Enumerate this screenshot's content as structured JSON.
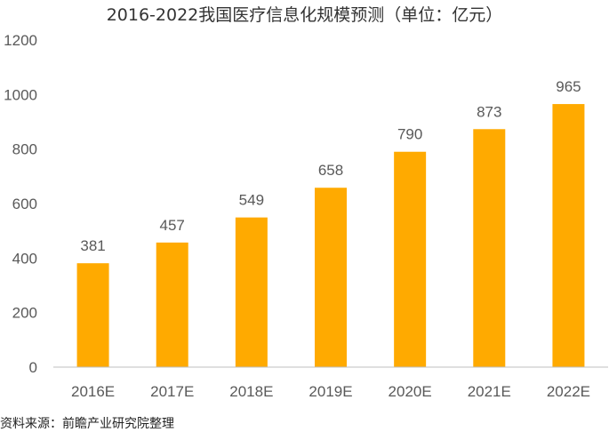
{
  "chart_data": {
    "type": "bar",
    "title": "2016-2022我国医疗信息化规模预测（单位：亿元）",
    "categories": [
      "2016E",
      "2017E",
      "2018E",
      "2019E",
      "2020E",
      "2021E",
      "2022E"
    ],
    "values": [
      381,
      457,
      549,
      658,
      790,
      873,
      965
    ],
    "ylim": [
      0,
      1200
    ],
    "yticks": [
      0,
      200,
      400,
      600,
      800,
      1000,
      1200
    ],
    "grid": false,
    "legend": "none",
    "bar_color": "#FFAA00",
    "axis_color": "#bfbfbf",
    "text_color": "#595959"
  },
  "source": "资料来源：前瞻产业研究院整理"
}
